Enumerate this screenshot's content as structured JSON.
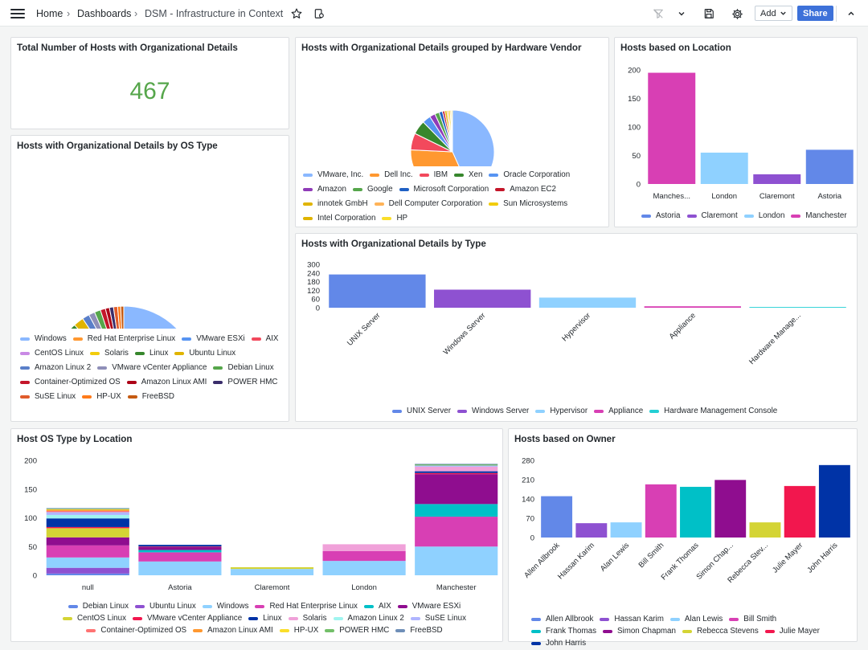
{
  "breadcrumb": {
    "home": "Home",
    "dashboards": "Dashboards",
    "current": "DSM - Infrastructure in Context"
  },
  "toolbar": {
    "add_label": "Add",
    "share_label": "Share"
  },
  "icons": [
    "menu-icon",
    "star-icon",
    "dashboard-settings-icon",
    "filter-off-icon",
    "chevron-down-icon",
    "save-icon",
    "gear-icon",
    "chevron-up-icon"
  ],
  "panels": {
    "total": {
      "title": "Total Number of Hosts with Organizational Details",
      "value": "467",
      "value_color": "#56a64b"
    },
    "vendor": {
      "title": "Hosts with Organizational Details grouped by Hardware Vendor"
    },
    "location": {
      "title": "Hosts based on Location"
    },
    "os": {
      "title": "Hosts with Organizational Details by OS Type"
    },
    "type": {
      "title": "Hosts with Organizational Details by Type"
    },
    "oslocation": {
      "title": "Host OS Type by Location"
    },
    "owner": {
      "title": "Hosts based on Owner"
    }
  },
  "chart_data": [
    {
      "type": "pie",
      "panel": "vendor",
      "series": [
        {
          "name": "VMware, Inc.",
          "value": 200,
          "color": "#8ab8ff"
        },
        {
          "name": "Dell Inc.",
          "value": 150,
          "color": "#ff9830"
        },
        {
          "name": "IBM",
          "value": 30,
          "color": "#f2495c"
        },
        {
          "name": "Xen",
          "value": 25,
          "color": "#37872d"
        },
        {
          "name": "Oracle Corporation",
          "value": 15,
          "color": "#5794f2"
        },
        {
          "name": "Amazon",
          "value": 10,
          "color": "#8f3bb8"
        },
        {
          "name": "Google",
          "value": 8,
          "color": "#56a64b"
        },
        {
          "name": "Microsoft Corporation",
          "value": 6,
          "color": "#1f60c4"
        },
        {
          "name": "Amazon EC2",
          "value": 4,
          "color": "#c4162a"
        },
        {
          "name": "innotek GmbH",
          "value": 4,
          "color": "#e0b400"
        },
        {
          "name": "Dell Computer Corporation",
          "value": 3,
          "color": "#ffb357"
        },
        {
          "name": "Sun Microsystems",
          "value": 3,
          "color": "#f2cc0c"
        },
        {
          "name": "Intel Corporation",
          "value": 2,
          "color": "#e0b400"
        },
        {
          "name": "HP",
          "value": 2,
          "color": "#fade2a"
        }
      ],
      "legend_placement": "bottom"
    },
    {
      "type": "bar",
      "panel": "location",
      "categories": [
        "Manches...",
        "London",
        "Claremont",
        "Astoria"
      ],
      "values": [
        195,
        55,
        17,
        60
      ],
      "colors": [
        "#d83fb4",
        "#8fd1ff",
        "#8e51d1",
        "#6288e8"
      ],
      "ylim": [
        0,
        200
      ],
      "yticks": [
        0,
        50,
        100,
        150,
        200
      ],
      "legend": [
        {
          "name": "Astoria",
          "color": "#6288e8"
        },
        {
          "name": "Claremont",
          "color": "#8e51d1"
        },
        {
          "name": "London",
          "color": "#8fd1ff"
        },
        {
          "name": "Manchester",
          "color": "#d83fb4"
        }
      ]
    },
    {
      "type": "pie",
      "panel": "os",
      "donut": true,
      "series": [
        {
          "name": "Windows",
          "value": 122,
          "color": "#8ab8ff"
        },
        {
          "name": "Red Hat Enterprise Linux",
          "value": 100,
          "color": "#ff9830"
        },
        {
          "name": "VMware ESXi",
          "value": 70,
          "color": "#5794f2"
        },
        {
          "name": "AIX",
          "value": 30,
          "color": "#f2495c"
        },
        {
          "name": "CentOS Linux",
          "value": 30,
          "color": "#c98ae5"
        },
        {
          "name": "Solaris",
          "value": 30,
          "color": "#f2cc0c"
        },
        {
          "name": "Linux",
          "value": 14,
          "color": "#37872d"
        },
        {
          "name": "Ubuntu Linux",
          "value": 10,
          "color": "#e0b400"
        },
        {
          "name": "Amazon Linux 2",
          "value": 7,
          "color": "#5a7fc9"
        },
        {
          "name": "VMware vCenter Appliance",
          "value": 6,
          "color": "#8f8fb8"
        },
        {
          "name": "Debian Linux",
          "value": 6,
          "color": "#56a64b"
        },
        {
          "name": "Container-Optimized OS",
          "value": 5,
          "color": "#c4162a"
        },
        {
          "name": "Amazon Linux AMI",
          "value": 4,
          "color": "#ad0317"
        },
        {
          "name": "POWER HMC",
          "value": 4,
          "color": "#3a2d6b"
        },
        {
          "name": "SuSE Linux",
          "value": 4,
          "color": "#e05b2b"
        },
        {
          "name": "HP-UX",
          "value": 3,
          "color": "#ff7b1a"
        },
        {
          "name": "FreeBSD",
          "value": 3,
          "color": "#c55a11"
        }
      ],
      "legend_placement": "bottom"
    },
    {
      "type": "bar",
      "panel": "type",
      "categories": [
        "UNIX Server",
        "Windows Server",
        "Hypervisor",
        "Appliance",
        "Hardware Manage..."
      ],
      "values": [
        230,
        125,
        70,
        10,
        5
      ],
      "colors": [
        "#6288e8",
        "#8e51d1",
        "#8fd1ff",
        "#d83fb4",
        "#24cfd4"
      ],
      "ylim": [
        0,
        300
      ],
      "yticks": [
        0,
        60,
        120,
        180,
        240,
        300
      ],
      "legend": [
        {
          "name": "UNIX Server",
          "color": "#6288e8"
        },
        {
          "name": "Windows Server",
          "color": "#8e51d1"
        },
        {
          "name": "Hypervisor",
          "color": "#8fd1ff"
        },
        {
          "name": "Appliance",
          "color": "#d83fb4"
        },
        {
          "name": "Hardware Management Console",
          "color": "#24cfd4"
        }
      ]
    },
    {
      "type": "bar",
      "panel": "oslocation",
      "stacked": true,
      "categories": [
        "null",
        "Astoria",
        "Claremont",
        "London",
        "Manchester"
      ],
      "ylim": [
        0,
        200
      ],
      "yticks": [
        0,
        50,
        100,
        150,
        200
      ],
      "series": [
        {
          "name": "Debian Linux",
          "color": "#6288e8",
          "values": [
            3,
            0,
            0,
            0,
            0
          ]
        },
        {
          "name": "Ubuntu Linux",
          "color": "#8e51d1",
          "values": [
            10,
            0,
            0,
            0,
            0
          ]
        },
        {
          "name": "Windows",
          "color": "#8fd1ff",
          "values": [
            18,
            24,
            11,
            25,
            50
          ]
        },
        {
          "name": "Red Hat Enterprise Linux",
          "color": "#d83fb4",
          "values": [
            21,
            16,
            0,
            17,
            52
          ]
        },
        {
          "name": "AIX",
          "color": "#00c0c7",
          "values": [
            0,
            4,
            0,
            0,
            22
          ]
        },
        {
          "name": "VMware ESXi",
          "color": "#8f0d8f",
          "values": [
            14,
            5,
            0,
            0,
            52
          ]
        },
        {
          "name": "CentOS Linux",
          "color": "#d4d435",
          "values": [
            16,
            0,
            3,
            0,
            0
          ]
        },
        {
          "name": "VMware vCenter Appliance",
          "color": "#f2174e",
          "values": [
            2,
            1,
            0,
            0,
            2
          ]
        },
        {
          "name": "Linux",
          "color": "#0033a6",
          "values": [
            15,
            3,
            0,
            0,
            3
          ]
        },
        {
          "name": "Solaris",
          "color": "#f0a1d9",
          "values": [
            0,
            0,
            0,
            12,
            8
          ]
        },
        {
          "name": "Amazon Linux 2",
          "color": "#a0f5f0",
          "values": [
            6,
            0,
            0,
            0,
            0
          ]
        },
        {
          "name": "SuSE Linux",
          "color": "#b0b5ff",
          "values": [
            5,
            0,
            0,
            0,
            2
          ]
        },
        {
          "name": "Container-Optimized OS",
          "color": "#ff7373",
          "values": [
            2,
            0,
            0,
            0,
            0
          ]
        },
        {
          "name": "Amazon Linux AMI",
          "color": "#ff9830",
          "values": [
            2,
            0,
            0,
            0,
            0
          ]
        },
        {
          "name": "HP-UX",
          "color": "#fade2a",
          "values": [
            1,
            0,
            0,
            0,
            0
          ]
        },
        {
          "name": "POWER HMC",
          "color": "#73bf69",
          "values": [
            1,
            0,
            0,
            0,
            2
          ]
        },
        {
          "name": "FreeBSD",
          "color": "#6f8fb8",
          "values": [
            1,
            0,
            0,
            0,
            1
          ]
        }
      ]
    },
    {
      "type": "bar",
      "panel": "owner",
      "categories": [
        "Allen Allbrook",
        "Hassan Karim",
        "Alan Lewis",
        "Bill Smith",
        "Frank Thomas",
        "Simon Chap...",
        "Rebecca Stev...",
        "Julie Mayer",
        "John Harris"
      ],
      "values": [
        150,
        52,
        55,
        193,
        184,
        209,
        55,
        187,
        263
      ],
      "colors": [
        "#6288e8",
        "#8e51d1",
        "#8fd1ff",
        "#d83fb4",
        "#00c0c7",
        "#8f0d8f",
        "#d4d435",
        "#f2174e",
        "#0033a6"
      ],
      "ylim": [
        0,
        280
      ],
      "yticks": [
        0,
        70,
        140,
        210,
        280
      ],
      "legend": [
        {
          "name": "Allen Allbrook",
          "color": "#6288e8"
        },
        {
          "name": "Hassan Karim",
          "color": "#8e51d1"
        },
        {
          "name": "Alan Lewis",
          "color": "#8fd1ff"
        },
        {
          "name": "Bill Smith",
          "color": "#d83fb4"
        },
        {
          "name": "Frank Thomas",
          "color": "#00c0c7"
        },
        {
          "name": "Simon Chapman",
          "color": "#8f0d8f"
        },
        {
          "name": "Rebecca Stevens",
          "color": "#d4d435"
        },
        {
          "name": "Julie Mayer",
          "color": "#f2174e"
        },
        {
          "name": "John Harris",
          "color": "#0033a6"
        }
      ]
    }
  ]
}
